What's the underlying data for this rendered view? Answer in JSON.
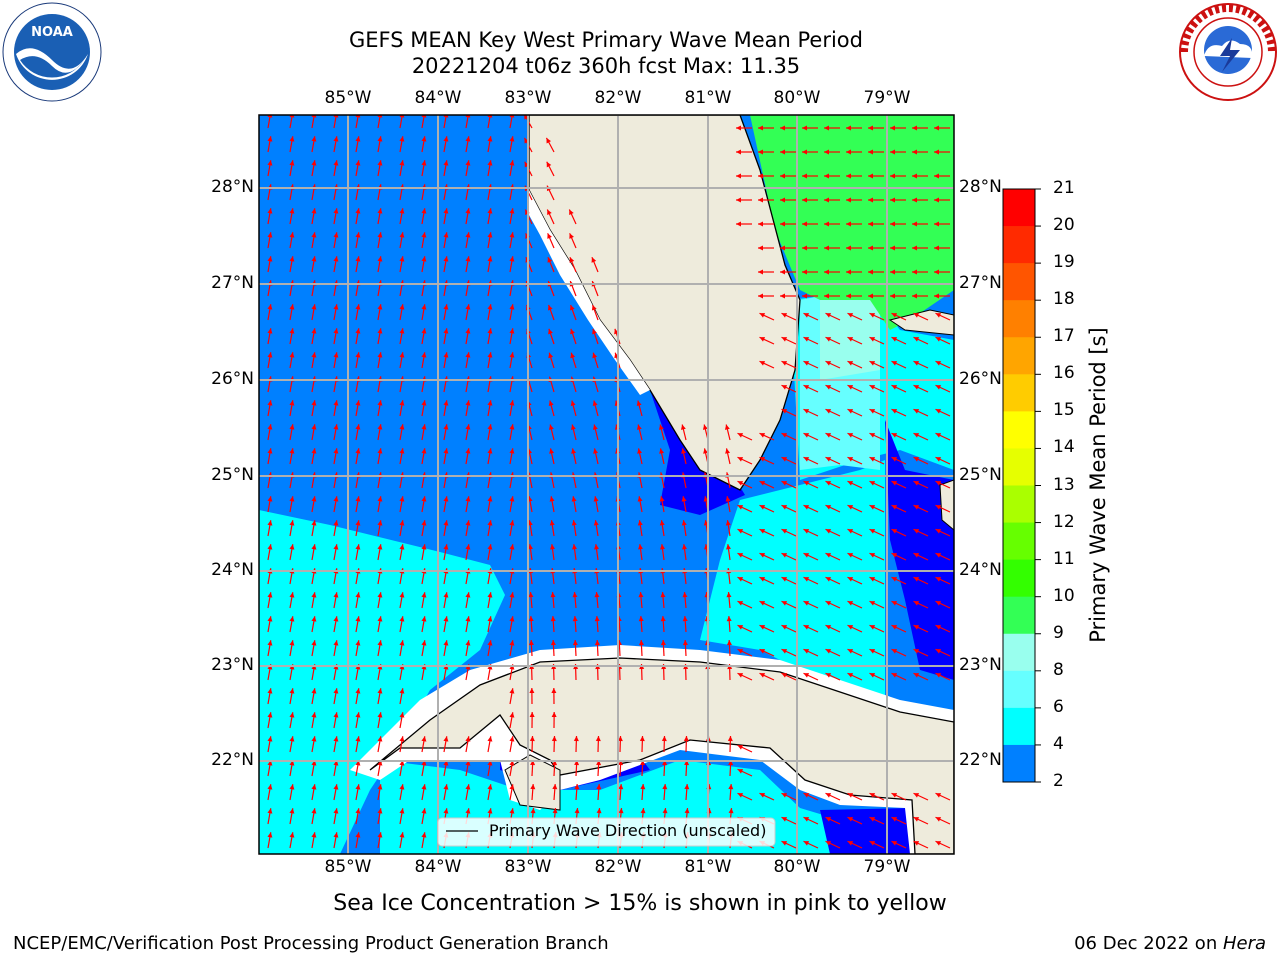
{
  "header": {
    "title_line1": "GEFS MEAN Key West Primary Wave Mean Period",
    "title_line2": "20221204 t06z 360h fcst   Max: 11.35"
  },
  "logos": {
    "left": {
      "name": "NOAA",
      "ring_text": "NATIONAL OCEANIC AND ATMOSPHERIC ADMINISTRATION · U.S. DEPARTMENT OF COMMERCE"
    },
    "right": {
      "ring_text": "NATIONAL WEATHER SERVICE"
    }
  },
  "map": {
    "lon_labels": [
      "85°W",
      "84°W",
      "83°W",
      "82°W",
      "81°W",
      "80°W",
      "79°W"
    ],
    "lat_labels": [
      "28°N",
      "27°N",
      "26°N",
      "25°N",
      "24°N",
      "23°N",
      "22°N"
    ],
    "legend_label": "Primary Wave Direction (unscaled)",
    "colors": {
      "land": "#eeebdc",
      "band_2_4": "#0000ff",
      "band_4_6": "#0080ff",
      "band_6_8": "#00ffff",
      "band_8_9": "#66ffff",
      "band_9_10": "#99ffee",
      "band_10_11": "#33ff55",
      "arrow": "#ff0000"
    }
  },
  "colorbar": {
    "label": "Primary Wave Mean Period [s]",
    "ticks": [
      "21",
      "20",
      "19",
      "18",
      "17",
      "16",
      "15",
      "14",
      "13",
      "12",
      "11",
      "10",
      "9",
      "8",
      "6",
      "4",
      "2"
    ],
    "colors_top_to_bottom": [
      "#ff0000",
      "#ff2a00",
      "#ff5500",
      "#ff8000",
      "#ffa500",
      "#ffcc00",
      "#ffff00",
      "#e6ff00",
      "#aaff00",
      "#66ff00",
      "#33ff00",
      "#33ff55",
      "#99ffee",
      "#66ffff",
      "#00ffff",
      "#0080ff",
      "#0000ff"
    ]
  },
  "note": "Sea Ice Concentration > 15% is shown in pink to yellow",
  "footer": {
    "left": "NCEP/EMC/Verification Post Processing Product Generation Branch",
    "date": "06 Dec 2022 on ",
    "machine": "Hera"
  }
}
